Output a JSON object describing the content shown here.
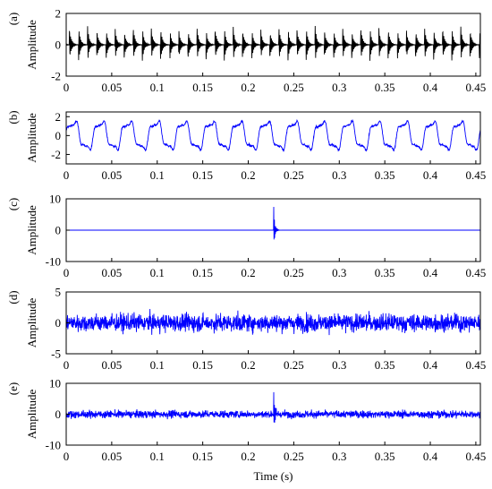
{
  "chart_data": [
    {
      "type": "line",
      "panel_label": "(a)",
      "ylabel": "Amplitude",
      "xlim": [
        0,
        0.455
      ],
      "ylim": [
        -2,
        2
      ],
      "xticks": [
        "0",
        "0.05",
        "0.1",
        "0.15",
        "0.2",
        "0.25",
        "0.3",
        "0.35",
        "0.4",
        "0.45"
      ],
      "yticks": [
        "-2",
        "0",
        "2"
      ],
      "color": "#000000",
      "signal": {
        "kind": "periodic_impulses",
        "period": 0.01,
        "peak": 1.2,
        "trough": -1.1,
        "decay_s": 0.002,
        "carrier_hz": 3000
      }
    },
    {
      "type": "line",
      "panel_label": "(b)",
      "ylabel": "Amplitude",
      "xlim": [
        0,
        0.455
      ],
      "ylim": [
        -3,
        2.5
      ],
      "xticks": [
        "0",
        "0.05",
        "0.1",
        "0.15",
        "0.2",
        "0.25",
        "0.3",
        "0.35",
        "0.4",
        "0.45"
      ],
      "yticks": [
        "-2",
        "0",
        "2"
      ],
      "color": "#0000ff",
      "signal": {
        "kind": "harmonic",
        "fundamental_hz": 33,
        "amplitude": 1.6
      }
    },
    {
      "type": "line",
      "panel_label": "(c)",
      "ylabel": "Amplitude",
      "xlim": [
        0,
        0.455
      ],
      "ylim": [
        -10,
        10
      ],
      "xticks": [
        "0",
        "0.05",
        "0.1",
        "0.15",
        "0.2",
        "0.25",
        "0.3",
        "0.35",
        "0.4",
        "0.45"
      ],
      "yticks": [
        "-10",
        "0",
        "10"
      ],
      "color": "#0000ff",
      "signal": {
        "kind": "transient",
        "t0": 0.228,
        "peak": 7.5,
        "trough": -6,
        "decay_s": 0.0012,
        "carrier_hz": 2500
      }
    },
    {
      "type": "line",
      "panel_label": "(d)",
      "ylabel": "Amplitude",
      "xlim": [
        0,
        0.455
      ],
      "ylim": [
        -5,
        5
      ],
      "xticks": [
        "0",
        "0.05",
        "0.1",
        "0.15",
        "0.2",
        "0.25",
        "0.3",
        "0.35",
        "0.4",
        "0.45"
      ],
      "yticks": [
        "-5",
        "0",
        "5"
      ],
      "color": "#0000ff",
      "signal": {
        "kind": "noise",
        "std": 0.7,
        "max_abs": 2.5
      }
    },
    {
      "type": "line",
      "panel_label": "(e)",
      "ylabel": "Amplitude",
      "xlabel": "Time (s)",
      "xlim": [
        0,
        0.455
      ],
      "ylim": [
        -10,
        10
      ],
      "xticks": [
        "0",
        "0.05",
        "0.1",
        "0.15",
        "0.2",
        "0.25",
        "0.3",
        "0.35",
        "0.4",
        "0.45"
      ],
      "yticks": [
        "-10",
        "0",
        "10"
      ],
      "color": "#0000ff",
      "signal": {
        "kind": "transient_plus_noise",
        "t0": 0.228,
        "peak": 7.5,
        "trough": -6,
        "decay_s": 0.0012,
        "carrier_hz": 2500,
        "noise_std": 0.6
      }
    }
  ]
}
